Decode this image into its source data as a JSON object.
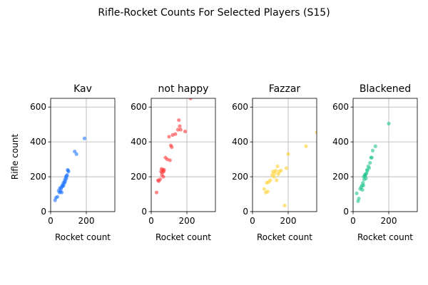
{
  "figure": {
    "suptitle": "Rifle-Rocket Counts For Selected Players (S15)",
    "ylabel": "Rifle count"
  },
  "chart_data": [
    {
      "type": "scatter",
      "title": "Kav",
      "xlabel": "Rocket count",
      "ylabel": "Rifle count",
      "xlim": [
        0,
        360
      ],
      "ylim": [
        0,
        650
      ],
      "xticks": [
        0,
        200
      ],
      "yticks": [
        0,
        200,
        400,
        600
      ],
      "grid": true,
      "color": "#1f77ff",
      "x": [
        25,
        30,
        38,
        45,
        50,
        52,
        55,
        58,
        60,
        62,
        65,
        68,
        70,
        72,
        75,
        78,
        80,
        82,
        85,
        88,
        90,
        92,
        95,
        98,
        100,
        135,
        145,
        190
      ],
      "y": [
        65,
        80,
        85,
        120,
        110,
        135,
        115,
        130,
        140,
        110,
        150,
        145,
        160,
        150,
        170,
        165,
        185,
        175,
        200,
        190,
        205,
        210,
        240,
        235,
        230,
        345,
        330,
        420
      ]
    },
    {
      "type": "scatter",
      "title": "not happy",
      "xlabel": "Rocket count",
      "xlim": [
        0,
        360
      ],
      "ylim": [
        0,
        650
      ],
      "xticks": [
        0,
        200
      ],
      "yticks": [
        0,
        200,
        400,
        600
      ],
      "grid": true,
      "color": "#ff3b3b",
      "x": [
        30,
        38,
        42,
        50,
        55,
        58,
        60,
        62,
        65,
        68,
        70,
        72,
        80,
        90,
        100,
        105,
        110,
        115,
        120,
        135,
        150,
        155,
        160,
        165,
        190,
        220
      ],
      "y": [
        110,
        180,
        175,
        185,
        230,
        245,
        210,
        225,
        240,
        200,
        230,
        240,
        310,
        300,
        430,
        295,
        380,
        370,
        440,
        445,
        470,
        525,
        490,
        470,
        460,
        650
      ]
    },
    {
      "type": "scatter",
      "title": "Fazzar",
      "xlabel": "Rocket count",
      "xlim": [
        0,
        360
      ],
      "ylim": [
        0,
        650
      ],
      "xticks": [
        0,
        200
      ],
      "yticks": [
        0,
        200,
        400,
        600
      ],
      "grid": true,
      "color": "#ffd12b",
      "x": [
        65,
        75,
        80,
        85,
        90,
        100,
        110,
        115,
        120,
        125,
        130,
        135,
        140,
        145,
        150,
        160,
        180,
        190,
        200,
        300,
        360
      ],
      "y": [
        130,
        110,
        165,
        115,
        170,
        180,
        210,
        230,
        200,
        220,
        235,
        180,
        260,
        215,
        230,
        235,
        35,
        250,
        330,
        375,
        455
      ]
    },
    {
      "type": "scatter",
      "title": "Blackened",
      "xlabel": "Rocket count",
      "xlim": [
        0,
        360
      ],
      "ylim": [
        0,
        650
      ],
      "xticks": [
        0,
        200
      ],
      "yticks": [
        0,
        200,
        400,
        600
      ],
      "grid": true,
      "color": "#1fc48a",
      "x": [
        20,
        28,
        32,
        40,
        45,
        50,
        52,
        55,
        58,
        60,
        62,
        65,
        68,
        70,
        72,
        75,
        78,
        80,
        85,
        90,
        95,
        100,
        105,
        110,
        125,
        200
      ],
      "y": [
        105,
        60,
        75,
        130,
        140,
        150,
        125,
        165,
        150,
        200,
        185,
        210,
        205,
        215,
        190,
        220,
        240,
        235,
        260,
        250,
        280,
        310,
        310,
        350,
        375,
        505
      ]
    }
  ]
}
